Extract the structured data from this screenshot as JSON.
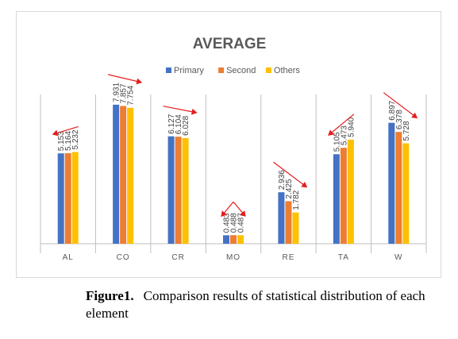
{
  "chart_data": {
    "type": "bar",
    "title": "AVERAGE",
    "categories": [
      "AL",
      "CO",
      "CR",
      "MO",
      "RE",
      "TA",
      "W"
    ],
    "series": [
      {
        "name": "Primary",
        "color": "#4472c4",
        "values": [
          5.153,
          7.931,
          6.127,
          0.483,
          2.936,
          5.105,
          6.897
        ]
      },
      {
        "name": "Second",
        "color": "#ed7d31",
        "values": [
          5.164,
          7.857,
          6.104,
          0.488,
          2.425,
          5.473,
          6.378
        ]
      },
      {
        "name": "Others",
        "color": "#ffc000",
        "values": [
          5.232,
          7.754,
          6.028,
          0.487,
          1.782,
          5.94,
          5.728
        ]
      }
    ],
    "data_labels": [
      [
        "5.153",
        "5.164",
        "5.232"
      ],
      [
        "7.931",
        "7.857",
        "7.754"
      ],
      [
        "6.127",
        "6.104",
        "6.028"
      ],
      [
        "0.483",
        "0.488",
        "0.487"
      ],
      [
        "2.936",
        "2.425",
        "1.782"
      ],
      [
        "5.105",
        "5.473",
        "5.940"
      ],
      [
        "6.897",
        "6.378",
        "5.728"
      ]
    ],
    "ylim": [
      0,
      9.6
    ],
    "legend_position": "top",
    "gridlines": false,
    "background_color": "#ffffff",
    "separator_color": "#bfbfbf",
    "trend_arrow_color": "#e41e1e",
    "trend_annotations": [
      "up-left",
      "down-right",
      "down-right",
      "peak",
      "down-right",
      "up-left",
      "down-right"
    ]
  },
  "caption": {
    "label": "Figure1.",
    "text": "Comparison results of statistical distribution of each element"
  }
}
